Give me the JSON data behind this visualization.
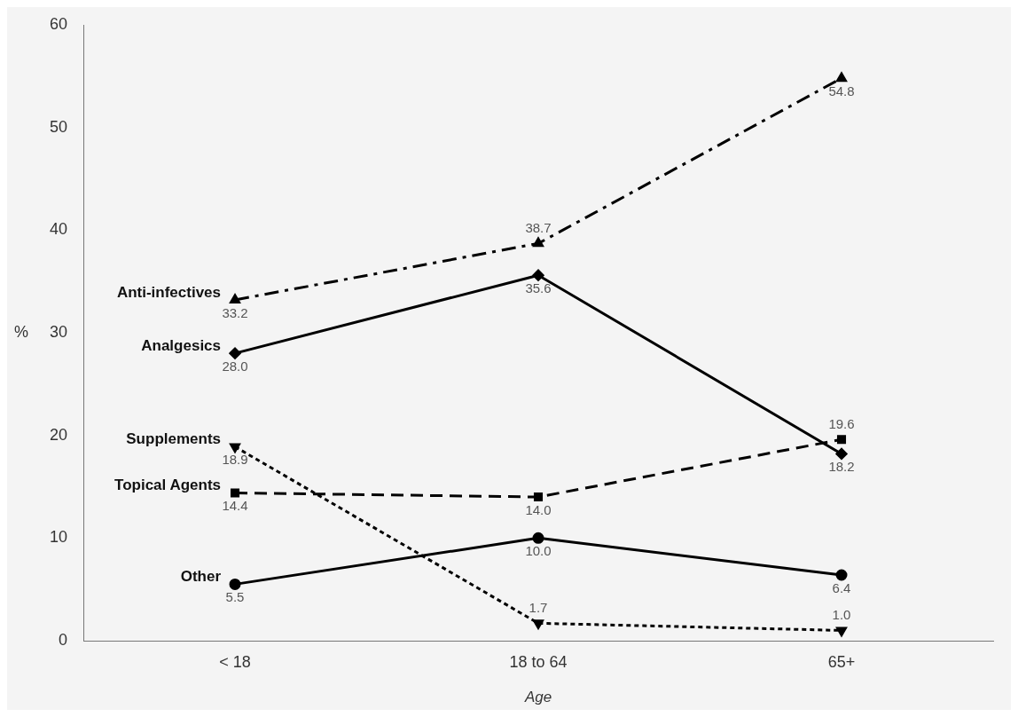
{
  "chart_data": {
    "type": "line",
    "xlabel": "Age",
    "ylabel": "%",
    "categories": [
      "< 18",
      "18 to 64",
      "65+"
    ],
    "ylim": [
      0,
      60
    ],
    "yticks": [
      0,
      10,
      20,
      30,
      40,
      50,
      60
    ],
    "grid": false,
    "legend": false,
    "series": [
      {
        "name": "Anti-infectives",
        "color": "#000000",
        "values": [
          33.2,
          38.7,
          54.8
        ],
        "value_labels": [
          "33.2",
          "38.7",
          "54.8"
        ],
        "marker": "triangle",
        "line_style": "dashdot"
      },
      {
        "name": "Analgesics",
        "color": "#000000",
        "values": [
          28.0,
          35.6,
          18.2
        ],
        "value_labels": [
          "28.0",
          "35.6",
          "18.2"
        ],
        "marker": "diamond",
        "line_style": "solid"
      },
      {
        "name": "Supplements",
        "color": "#000000",
        "values": [
          18.9,
          1.7,
          1.0
        ],
        "value_labels": [
          "18.9",
          "1.7",
          "1.0"
        ],
        "marker": "triangle-down",
        "line_style": "dotted"
      },
      {
        "name": "Topical Agents",
        "color": "#000000",
        "values": [
          14.4,
          14.0,
          19.6
        ],
        "value_labels": [
          "14.4",
          "14.0",
          "19.6"
        ],
        "marker": "square",
        "line_style": "dashed"
      },
      {
        "name": "Other",
        "color": "#000000",
        "values": [
          5.5,
          10.0,
          6.4
        ],
        "value_labels": [
          "5.5",
          "10.0",
          "6.4"
        ],
        "marker": "circle",
        "line_style": "solid"
      }
    ]
  }
}
